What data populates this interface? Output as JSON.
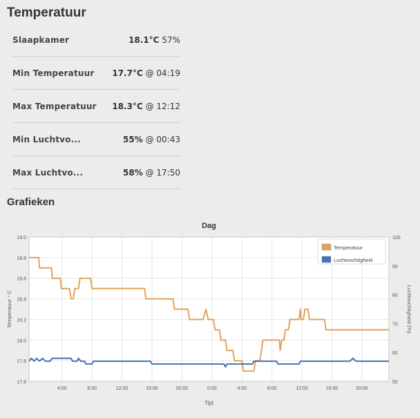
{
  "page": {
    "title": "Temperatuur"
  },
  "stats": [
    {
      "label": "Slaapkamer",
      "value_bold": "18.1°C",
      "value_rest": " 57%"
    },
    {
      "label": "Min Temperatuur",
      "value_bold": "17.7°C",
      "value_rest": " @ 04:19"
    },
    {
      "label": "Max Temperatuur",
      "value_bold": "18.3°C",
      "value_rest": " @ 12:12"
    },
    {
      "label": "Min Luchtvo...",
      "value_bold": "55%",
      "value_rest": " @ 00:43"
    },
    {
      "label": "Max Luchtvo...",
      "value_bold": "58%",
      "value_rest": " @ 17:50"
    }
  ],
  "section": {
    "title": "Grafieken"
  },
  "chart_data": {
    "type": "line",
    "title": "Dag",
    "xlabel": "Tijd",
    "ylabel_left": "Temperatuur ° C",
    "ylabel_right": "Luchtvochtigheid (%)",
    "x_range_hours": [
      0,
      24
    ],
    "x_tick_labels": [
      "4:00",
      "8:00",
      "12:00",
      "16:00",
      "20:00",
      "0:00",
      "4:00",
      "8:00",
      "12:00",
      "16:00",
      "20:00"
    ],
    "x_tick_positions_hours": [
      2.2,
      4.2,
      6.2,
      8.2,
      10.2,
      12.2,
      14.2,
      16.2,
      18.2,
      20.2,
      22.2
    ],
    "y_left": {
      "range": [
        17.6,
        19.0
      ],
      "ticks": [
        "17.6",
        "17.8",
        "18.0",
        "18.2",
        "18.4",
        "18.6",
        "18.8",
        "19.0"
      ]
    },
    "y_right": {
      "range": [
        50,
        100
      ],
      "ticks": [
        "50",
        "60",
        "70",
        "80",
        "90",
        "100"
      ]
    },
    "legend_position": "top-right",
    "grid": true,
    "series": [
      {
        "name": "Temperatuur",
        "color": "#e0a35a",
        "axis": "left",
        "points": [
          [
            0.0,
            18.8
          ],
          [
            0.65,
            18.8
          ],
          [
            0.7,
            18.7
          ],
          [
            1.5,
            18.7
          ],
          [
            1.55,
            18.6
          ],
          [
            2.1,
            18.6
          ],
          [
            2.15,
            18.5
          ],
          [
            2.7,
            18.5
          ],
          [
            2.8,
            18.4
          ],
          [
            2.95,
            18.4
          ],
          [
            3.05,
            18.5
          ],
          [
            3.3,
            18.5
          ],
          [
            3.4,
            18.6
          ],
          [
            4.1,
            18.6
          ],
          [
            4.2,
            18.5
          ],
          [
            7.7,
            18.5
          ],
          [
            7.8,
            18.4
          ],
          [
            9.6,
            18.4
          ],
          [
            9.7,
            18.3
          ],
          [
            10.6,
            18.3
          ],
          [
            10.7,
            18.2
          ],
          [
            11.6,
            18.2
          ],
          [
            11.8,
            18.3
          ],
          [
            11.95,
            18.2
          ],
          [
            12.3,
            18.2
          ],
          [
            12.4,
            18.1
          ],
          [
            12.7,
            18.1
          ],
          [
            12.8,
            18.0
          ],
          [
            13.1,
            18.0
          ],
          [
            13.2,
            17.9
          ],
          [
            13.6,
            17.9
          ],
          [
            13.7,
            17.8
          ],
          [
            14.2,
            17.8
          ],
          [
            14.3,
            17.7
          ],
          [
            15.0,
            17.7
          ],
          [
            15.1,
            17.8
          ],
          [
            15.4,
            17.8
          ],
          [
            15.6,
            18.0
          ],
          [
            16.7,
            18.0
          ],
          [
            16.75,
            17.9
          ],
          [
            16.85,
            18.0
          ],
          [
            17.0,
            18.0
          ],
          [
            17.1,
            18.1
          ],
          [
            17.3,
            18.1
          ],
          [
            17.4,
            18.2
          ],
          [
            18.0,
            18.2
          ],
          [
            18.1,
            18.3
          ],
          [
            18.15,
            18.2
          ],
          [
            18.3,
            18.2
          ],
          [
            18.4,
            18.3
          ],
          [
            18.6,
            18.3
          ],
          [
            18.7,
            18.2
          ],
          [
            19.7,
            18.2
          ],
          [
            19.8,
            18.1
          ],
          [
            24.0,
            18.1
          ]
        ]
      },
      {
        "name": "Luchtvochtigheid",
        "color": "#3f73b6",
        "axis": "right",
        "points": [
          [
            0.0,
            57
          ],
          [
            0.15,
            58
          ],
          [
            0.35,
            57
          ],
          [
            0.5,
            58
          ],
          [
            0.7,
            57
          ],
          [
            0.9,
            58
          ],
          [
            1.1,
            57
          ],
          [
            1.4,
            57
          ],
          [
            1.55,
            58
          ],
          [
            2.8,
            58
          ],
          [
            2.9,
            57
          ],
          [
            3.2,
            57
          ],
          [
            3.3,
            58
          ],
          [
            3.45,
            57
          ],
          [
            3.7,
            57
          ],
          [
            3.8,
            56
          ],
          [
            4.2,
            56
          ],
          [
            4.3,
            57
          ],
          [
            8.1,
            57
          ],
          [
            8.2,
            56
          ],
          [
            13.0,
            56
          ],
          [
            13.1,
            55
          ],
          [
            13.2,
            56
          ],
          [
            14.9,
            56
          ],
          [
            15.0,
            57
          ],
          [
            16.5,
            57
          ],
          [
            16.6,
            56
          ],
          [
            18.0,
            56
          ],
          [
            18.1,
            57
          ],
          [
            21.4,
            57
          ],
          [
            21.6,
            58
          ],
          [
            21.8,
            57
          ],
          [
            24.0,
            57
          ]
        ]
      }
    ]
  }
}
